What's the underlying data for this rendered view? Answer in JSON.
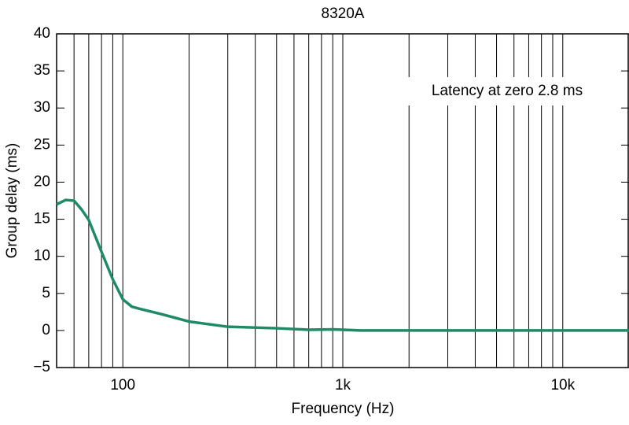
{
  "chart_data": {
    "type": "line",
    "title": "8320A",
    "x_label": "Frequency (Hz)",
    "y_label": "Group delay (ms)",
    "annotation": "Latency at zero 2.8 ms",
    "x_scale": "log",
    "xlim": [
      50,
      20000
    ],
    "xticks": [
      100,
      {
        "value": 1000,
        "label": "1k"
      },
      {
        "value": 10000,
        "label": "10k"
      }
    ],
    "x_grid": [
      60,
      70,
      80,
      90,
      100,
      200,
      300,
      400,
      500,
      600,
      700,
      800,
      900,
      1000,
      2000,
      3000,
      4000,
      5000,
      6000,
      7000,
      8000,
      9000,
      10000
    ],
    "ylim": [
      -5,
      40
    ],
    "yticks": [
      {
        "value": -5,
        "label": "−5"
      },
      0,
      5,
      10,
      15,
      20,
      25,
      30,
      35,
      40
    ],
    "x": [
      50,
      55,
      60,
      65,
      70,
      80,
      90,
      100,
      110,
      120,
      150,
      200,
      300,
      500,
      700,
      900,
      1200,
      2000,
      5000,
      20000
    ],
    "series": [
      {
        "name": "8320A",
        "color": "#1e8a68",
        "values": [
          17.0,
          17.6,
          17.5,
          16.3,
          14.9,
          10.6,
          6.9,
          4.2,
          3.2,
          2.9,
          2.2,
          1.2,
          0.5,
          0.3,
          0.1,
          0.15,
          0.0,
          0.0,
          0.0,
          0.0
        ]
      }
    ]
  }
}
